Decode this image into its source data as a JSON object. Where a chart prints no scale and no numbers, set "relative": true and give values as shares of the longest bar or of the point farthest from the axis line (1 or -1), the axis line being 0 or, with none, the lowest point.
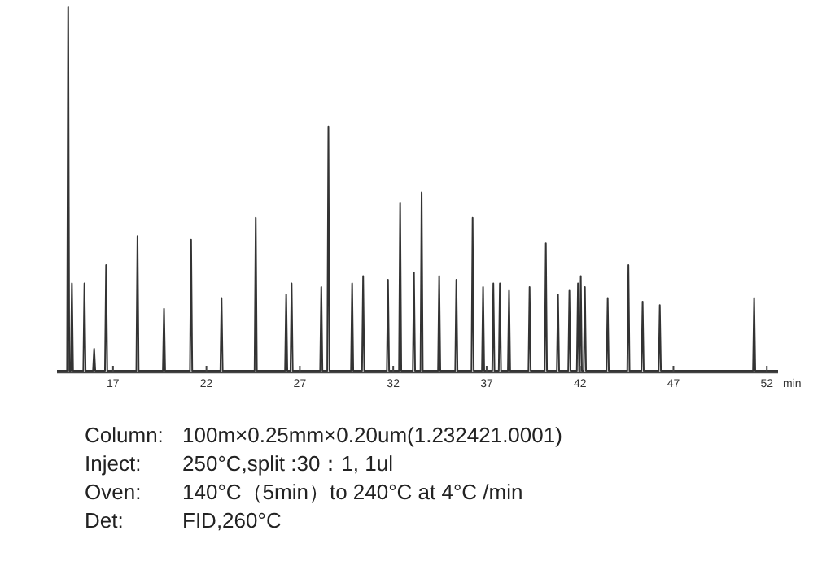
{
  "chart_data": {
    "type": "line",
    "relative": true,
    "xlabel": "min",
    "xlim": [
      14,
      52.6
    ],
    "xticks": [
      17,
      22,
      27,
      32,
      37,
      42,
      47,
      52
    ],
    "grid": false,
    "marker": "none",
    "line_style": "solid",
    "series": [
      {
        "color": "#333333",
        "x": [
          14,
          14.54,
          14.6,
          14.66,
          14.74,
          14.8,
          14.86,
          15.41,
          15.47,
          15.53,
          15.93,
          15.99,
          16.05,
          16.57,
          16.63,
          16.69,
          18.25,
          18.31,
          18.37,
          19.67,
          19.73,
          19.79,
          21.12,
          21.18,
          21.24,
          22.75,
          22.81,
          22.87,
          24.58,
          24.64,
          24.7,
          26.21,
          26.27,
          26.33,
          26.5,
          26.56,
          26.62,
          28.09,
          28.15,
          28.21,
          28.47,
          28.53,
          28.59,
          29.74,
          29.8,
          29.86,
          30.33,
          30.39,
          30.45,
          31.66,
          31.72,
          31.78,
          32.31,
          32.37,
          32.43,
          33.05,
          33.11,
          33.17,
          33.46,
          33.52,
          33.58,
          34.4,
          34.46,
          34.52,
          35.32,
          35.38,
          35.44,
          36.19,
          36.25,
          36.31,
          36.75,
          36.81,
          36.87,
          37.3,
          37.36,
          37.42,
          37.65,
          37.71,
          37.77,
          38.14,
          38.2,
          38.26,
          39.24,
          39.3,
          39.36,
          40.11,
          40.17,
          40.23,
          40.76,
          40.82,
          40.88,
          41.37,
          41.43,
          41.49,
          41.83,
          41.89,
          41.95,
          41.98,
          42.04,
          42.1,
          42.2,
          42.26,
          42.32,
          43.42,
          43.48,
          43.54,
          44.53,
          44.59,
          44.65,
          45.29,
          45.35,
          45.41,
          46.21,
          46.27,
          46.33,
          51.26,
          51.32,
          51.38,
          52.6
        ],
        "values": [
          0,
          0,
          1,
          0,
          0,
          0.24,
          0,
          0,
          0.24,
          0,
          0,
          0.06,
          0,
          0,
          0.29,
          0,
          0,
          0.37,
          0,
          0,
          0.17,
          0,
          0,
          0.36,
          0,
          0,
          0.2,
          0,
          0,
          0.42,
          0,
          0,
          0.21,
          0,
          0,
          0.24,
          0,
          0,
          0.23,
          0,
          0,
          0.67,
          0,
          0,
          0.24,
          0,
          0,
          0.26,
          0,
          0,
          0.25,
          0,
          0,
          0.46,
          0,
          0,
          0.27,
          0,
          0,
          0.49,
          0,
          0,
          0.26,
          0,
          0,
          0.25,
          0,
          0,
          0.42,
          0,
          0,
          0.23,
          0,
          0,
          0.24,
          0,
          0,
          0.24,
          0,
          0,
          0.22,
          0,
          0,
          0.23,
          0,
          0,
          0.35,
          0,
          0,
          0.21,
          0,
          0,
          0.22,
          0,
          0,
          0.24,
          0,
          0,
          0.26,
          0,
          0,
          0.23,
          0,
          0,
          0.2,
          0,
          0,
          0.29,
          0,
          0,
          0.19,
          0,
          0,
          0.18,
          0,
          0,
          0.2,
          0,
          0
        ]
      }
    ],
    "annotations": [
      "Column:  100m×0.25mm×0.20um(1.232421.0001)",
      "Inject:  250°C,split :30：1, 1ul",
      "Oven:  140°C（5min）to 240°C  at 4°C /min",
      "Det:  FID,260°C"
    ]
  }
}
